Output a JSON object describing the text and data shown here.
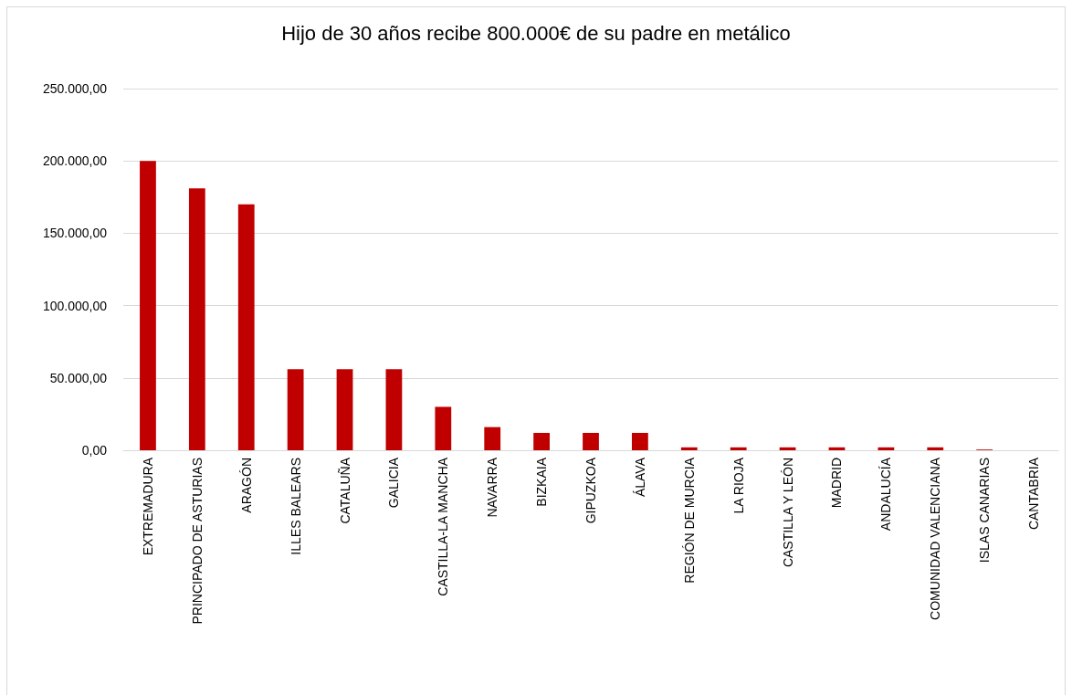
{
  "chart_data": {
    "type": "bar",
    "title": "Hijo de 30 años recibe 800.000€ de su padre en metálico",
    "categories": [
      "EXTREMADURA",
      "PRINCIPADO DE ASTURIAS",
      "ARAGÓN",
      "ILLES BALEARS",
      "CATALUÑA",
      "GALICIA",
      "CASTILLA-LA MANCHA",
      "NAVARRA",
      "BIZKAIA",
      "GIPUZKOA",
      "ÁLAVA",
      "REGIÓN DE MURCIA",
      "LA RIOJA",
      "CASTILLA Y LEÓN",
      "MADRID",
      "ANDALUCÍA",
      "COMUNIDAD VALENCIANA",
      "ISLAS CANARIAS",
      "CANTABRIA"
    ],
    "values": [
      200000,
      181000,
      170000,
      56000,
      56000,
      56000,
      30000,
      16000,
      12000,
      12000,
      12000,
      2000,
      2000,
      2000,
      2000,
      2000,
      2000,
      500,
      0
    ],
    "color": "#c00000",
    "ylim": [
      0,
      250000
    ],
    "yticks": [
      {
        "value": 0,
        "label": "0,00"
      },
      {
        "value": 50000,
        "label": "50.000,00"
      },
      {
        "value": 100000,
        "label": "100.000,00"
      },
      {
        "value": 150000,
        "label": "150.000,00"
      },
      {
        "value": 200000,
        "label": "200.000,00"
      },
      {
        "value": 250000,
        "label": "250.000,00"
      }
    ],
    "grid": "y"
  }
}
